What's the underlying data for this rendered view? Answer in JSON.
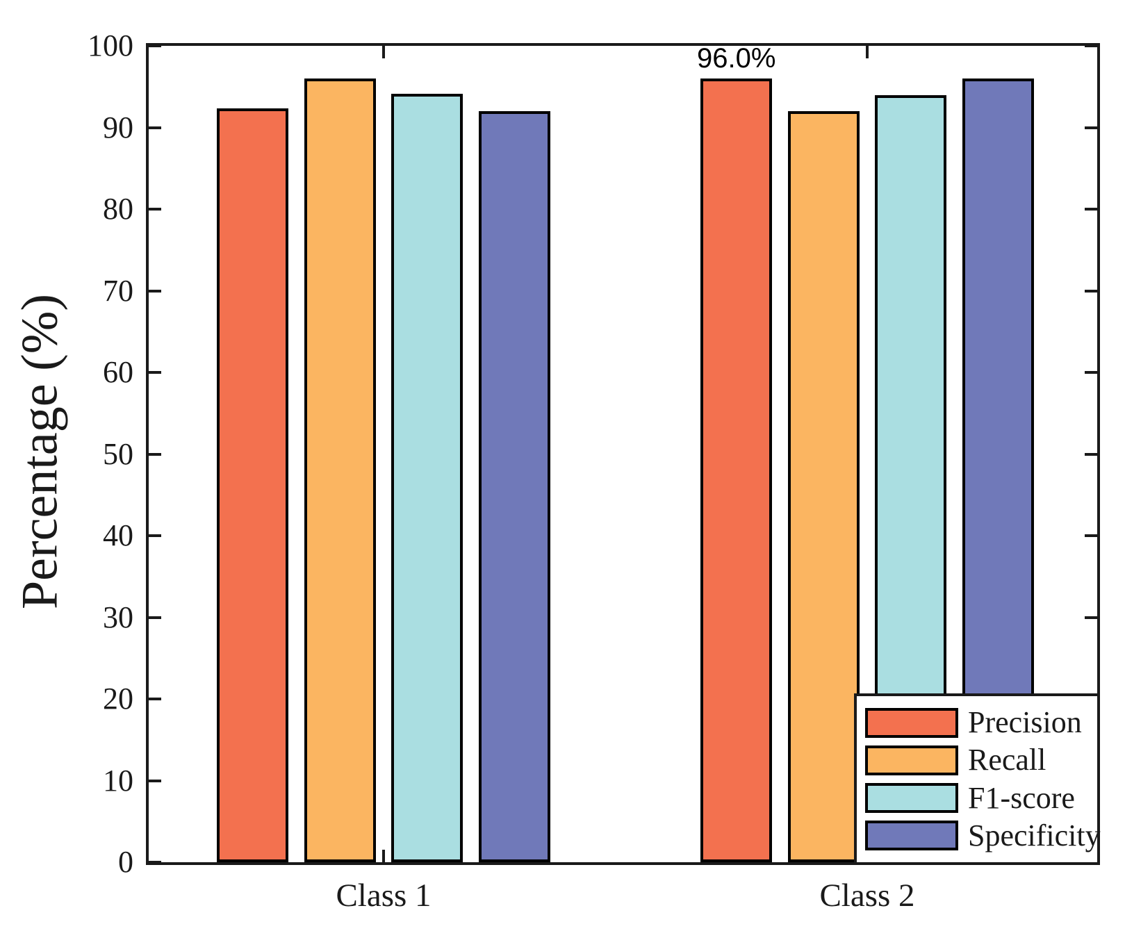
{
  "chart_data": {
    "type": "bar",
    "title": "",
    "xlabel": "",
    "ylabel": "Percentage (%)",
    "categories": [
      "Class 1",
      "Class 2"
    ],
    "series": [
      {
        "name": "Precision",
        "color": "#F3714F",
        "values": [
          92.3,
          96.0
        ]
      },
      {
        "name": "Recall",
        "color": "#FBB561",
        "values": [
          96.0,
          92.0
        ]
      },
      {
        "name": "F1-score",
        "color": "#AADEE1",
        "values": [
          94.1,
          94.0
        ]
      },
      {
        "name": "Specificity",
        "color": "#7079B9",
        "values": [
          92.0,
          96.0
        ]
      }
    ],
    "ylim": [
      0,
      100
    ],
    "yticks": [
      0,
      10,
      20,
      30,
      40,
      50,
      60,
      70,
      80,
      90,
      100
    ],
    "grid": false,
    "legend_position": "lower right",
    "annotations": [
      {
        "text": "96.0%",
        "series": "Precision",
        "category": "Class 2",
        "value": 96.0
      }
    ],
    "bar_edge_color": "#000000",
    "axis_color": "#1a1a1a"
  }
}
